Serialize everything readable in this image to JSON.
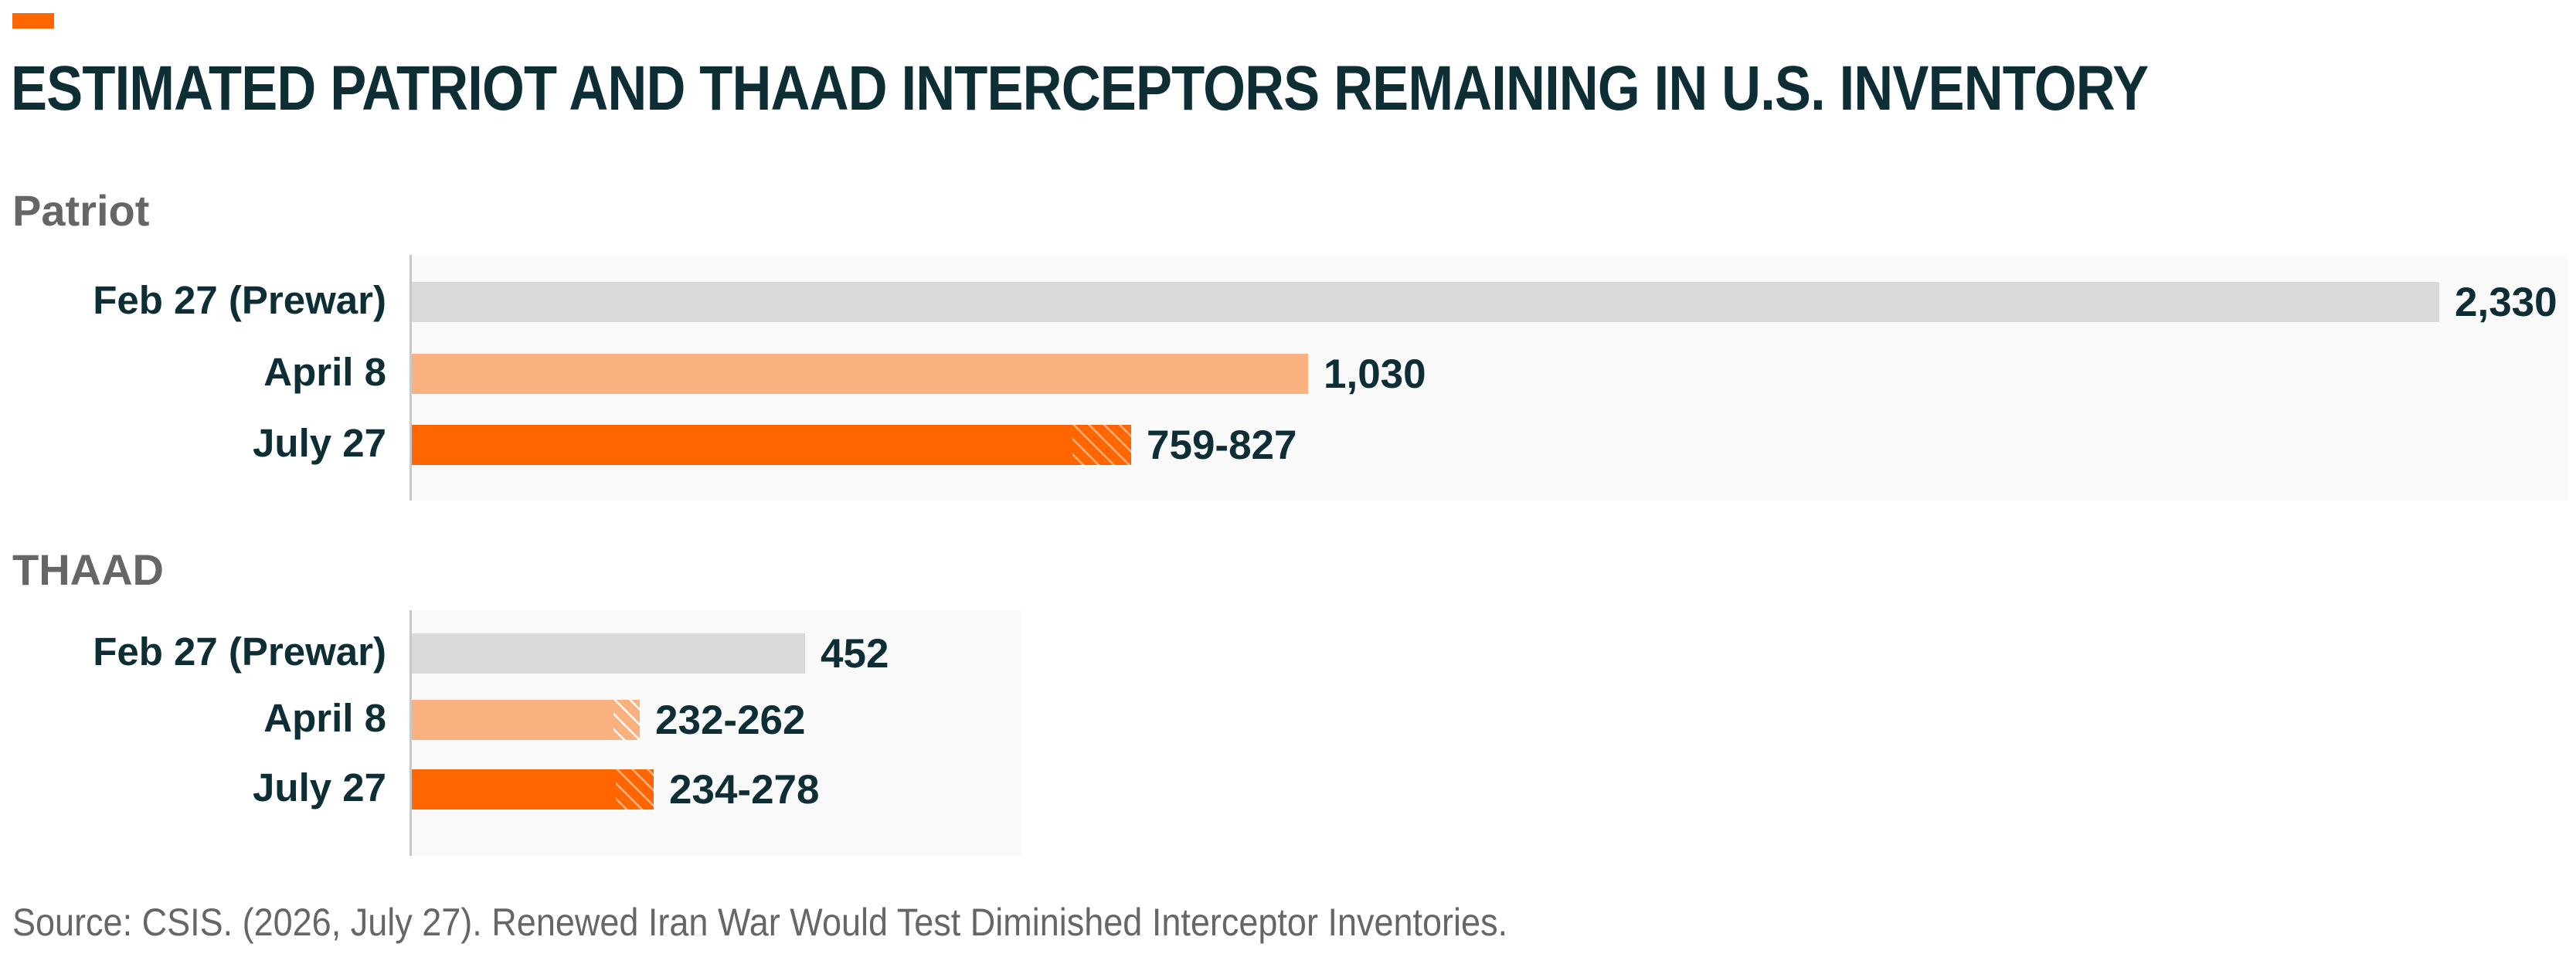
{
  "title": "ESTIMATED PATRIOT AND THAAD INTERCEPTORS REMAINING IN U.S. INVENTORY",
  "source": "Source: CSIS. (2026, July 27). Renewed Iran War Would Test Diminished Interceptor Inventories.",
  "colors": {
    "accent": "#ff6600",
    "prewar": "#d9d9d7",
    "april": "#fbb17f",
    "july": "#ff6600",
    "text": "#0e2e36",
    "muted": "#666666",
    "panel": "#f8f9f8"
  },
  "chart_data": [
    {
      "type": "bar",
      "orientation": "horizontal",
      "title": "Patriot",
      "categories": [
        "Feb 27 (Prewar)",
        "April 8",
        "July 27"
      ],
      "values": [
        {
          "low": 2330,
          "high": 2330,
          "label": "2,330"
        },
        {
          "low": 1030,
          "high": 1030,
          "label": "1,030"
        },
        {
          "low": 759,
          "high": 827,
          "label": "759-827"
        }
      ]
    },
    {
      "type": "bar",
      "orientation": "horizontal",
      "title": "THAAD",
      "categories": [
        "Feb 27 (Prewar)",
        "April 8",
        "July 27"
      ],
      "values": [
        {
          "low": 452,
          "high": 452,
          "label": "452"
        },
        {
          "low": 232,
          "high": 262,
          "label": "232-262"
        },
        {
          "low": 234,
          "high": 278,
          "label": "234-278"
        }
      ]
    }
  ]
}
